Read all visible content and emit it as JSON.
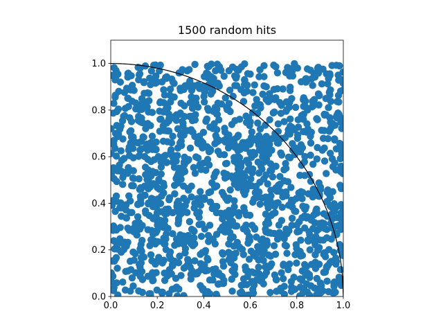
{
  "chart_data": {
    "type": "scatter",
    "title": "1500 random hits",
    "xlabel": "",
    "ylabel": "",
    "xlim": [
      0.0,
      1.1
    ],
    "ylim": [
      0.0,
      1.1
    ],
    "view_xlim": [
      0.0,
      1.0
    ],
    "view_ylim": [
      0.0,
      1.1
    ],
    "xticks": [
      0.0,
      0.2,
      0.4,
      0.6,
      0.8,
      1.0
    ],
    "xtick_labels": [
      "0.0",
      "0.2",
      "0.4",
      "0.6",
      "0.8",
      "1.0"
    ],
    "yticks": [
      0.0,
      0.2,
      0.4,
      0.6,
      0.8,
      1.0
    ],
    "ytick_labels": [
      "0.0",
      "0.2",
      "0.4",
      "0.6",
      "0.8",
      "1.0"
    ],
    "grid": false,
    "legend": "none",
    "series": [
      {
        "kind": "points",
        "color": "#1f77b4",
        "count": 1500,
        "distribution": "uniform",
        "x_range": [
          0.0,
          1.0
        ],
        "y_range": [
          0.0,
          1.0
        ]
      }
    ],
    "curve": {
      "kind": "quarter-circle",
      "equation": "x^2 + y^2 = 1",
      "color": "#000000",
      "x_range": [
        0.0,
        1.0
      ]
    }
  }
}
